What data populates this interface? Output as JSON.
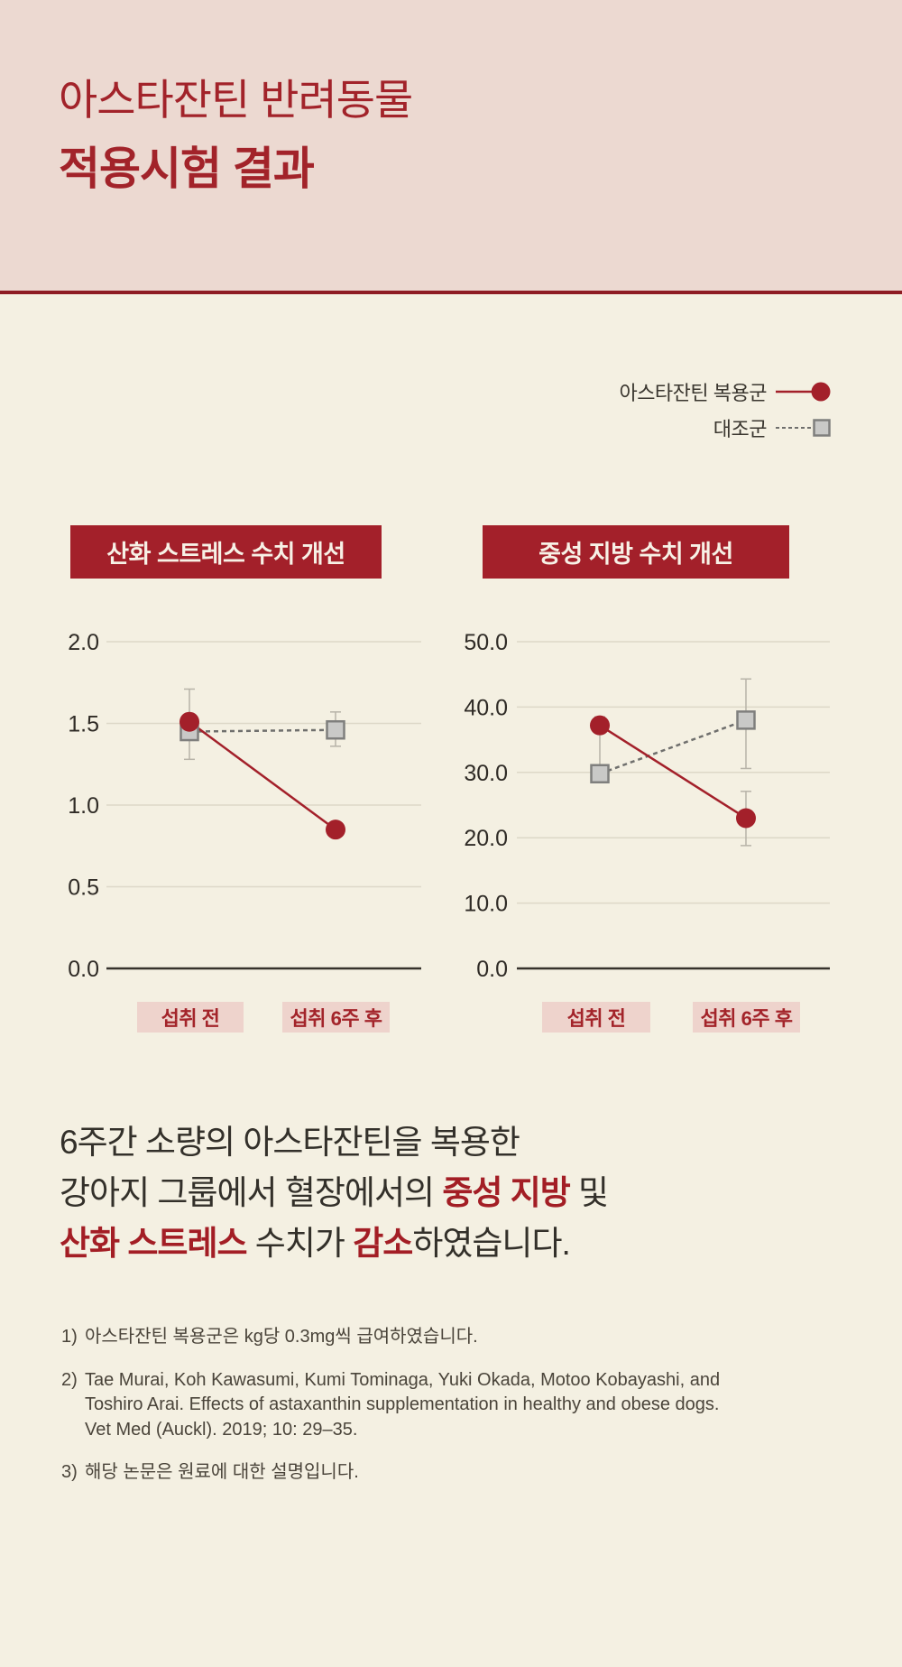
{
  "header": {
    "title_line1": "아스타잔틴 반려동물",
    "title_line2": "적용시험 결과"
  },
  "legend": {
    "astaxanthin_label": "아스타잔틴 복용군",
    "control_label": "대조군"
  },
  "colors": {
    "page_bg": "#f4f0e2",
    "header_bg": "#ecd9d1",
    "brand_red": "#a3202a",
    "badge_bg": "#eed3cc",
    "grid": "#ddd8c8",
    "axis": "#36322c",
    "tick_text": "#2f2b26",
    "control_line": "#6f6f6d",
    "square_fill": "#c9c9c7",
    "square_stroke": "#7f7f7d",
    "error_bar": "#b7b3a8"
  },
  "chart_data": [
    {
      "type": "line",
      "title": "산화 스트레스 수치 개선",
      "categories": [
        "섭취 전",
        "섭취 6주 후"
      ],
      "ylim": [
        0,
        2.0
      ],
      "yticks": [
        "0.0",
        "0.5",
        "1.0",
        "1.5",
        "2.0"
      ],
      "grid": true,
      "legend_position": "top-right",
      "series": [
        {
          "name": "대조군",
          "style": "control",
          "values": [
            1.45,
            1.46
          ],
          "errors": [
            null,
            [
              1.36,
              1.57
            ]
          ]
        },
        {
          "name": "아스타잔틴 복용군",
          "style": "astaxanthin",
          "values": [
            1.51,
            0.85
          ],
          "errors": [
            [
              1.28,
              1.71
            ],
            null
          ]
        }
      ]
    },
    {
      "type": "line",
      "title": "중성 지방 수치 개선",
      "categories": [
        "섭취 전",
        "섭취 6주 후"
      ],
      "ylim": [
        0,
        50.0
      ],
      "yticks": [
        "0.0",
        "10.0",
        "20.0",
        "30.0",
        "40.0",
        "50.0"
      ],
      "grid": true,
      "legend_position": "top-right",
      "series": [
        {
          "name": "대조군",
          "style": "control",
          "values": [
            29.8,
            38.0
          ],
          "errors": [
            null,
            [
              30.6,
              44.3
            ]
          ]
        },
        {
          "name": "아스타잔틴 복용군",
          "style": "astaxanthin",
          "values": [
            37.2,
            23.0
          ],
          "errors": [
            [
              28.5,
              38.5
            ],
            [
              18.8,
              27.1
            ]
          ]
        }
      ]
    }
  ],
  "summary": {
    "line1": "6주간 소량의 아스타잔틴을 복용한",
    "line2_pre": "강아지 그룹에서 혈장에서의 ",
    "line2_em": "중성 지방",
    "line2_post": " 및",
    "line3_em1": "산화 스트레스",
    "line3_mid": " 수치가 ",
    "line3_em2": "감소",
    "line3_post": "하였습니다."
  },
  "footnotes": [
    {
      "num": "1)",
      "lines": [
        "아스타잔틴 복용군은 kg당 0.3mg씩 급여하였습니다."
      ]
    },
    {
      "num": "2)",
      "lines": [
        "Tae Murai, Koh Kawasumi, Kumi Tominaga, Yuki Okada, Motoo Kobayashi, and",
        "Toshiro Arai. Effects of astaxanthin supplementation in healthy and obese dogs.",
        "Vet Med (Auckl). 2019; 10: 29–35."
      ]
    },
    {
      "num": "3)",
      "lines": [
        "해당 논문은 원료에 대한 설명입니다."
      ]
    }
  ]
}
